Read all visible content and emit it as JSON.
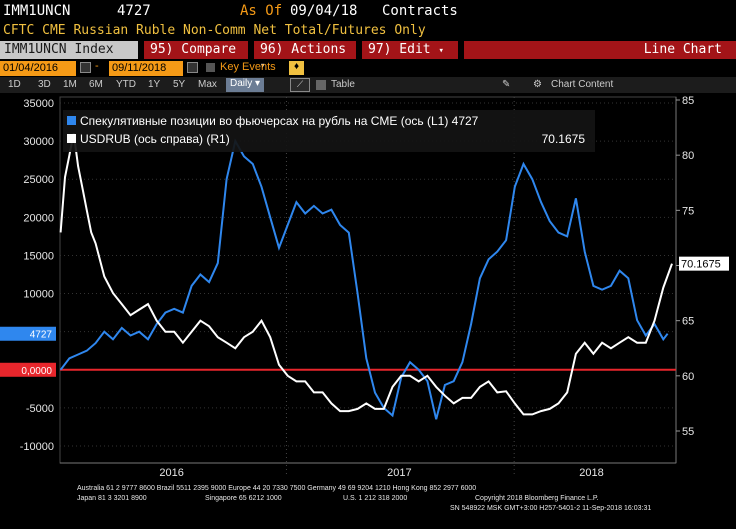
{
  "header": {
    "ticker": "IMM1UNCN",
    "value": "4727",
    "as_of_label": "As Of",
    "as_of_date": "09/04/18",
    "unit": "Contracts",
    "description": "CFTC CME Russian Ruble Non-Comm Net Total/Futures Only"
  },
  "toolbar": {
    "ticker_index": "IMM1UNCN Index",
    "compare": "95) Compare",
    "actions": "96) Actions",
    "edit": "97) Edit",
    "chart_type": "Line Chart"
  },
  "range": {
    "start": "01/04/2016",
    "end": "09/11/2018",
    "key_events": "Key Events"
  },
  "periods": {
    "buttons": [
      "1D",
      "3D",
      "1M",
      "6M",
      "YTD",
      "1Y",
      "5Y",
      "Max"
    ],
    "frequency": "Daily",
    "table": "Table",
    "chart_content": "Chart Content"
  },
  "footer": {
    "line1": "Australia 61 2 9777 8600 Brazil 5511 2395 9000 Europe 44 20 7330 7500 Germany 49 69 9204 1210 Hong Kong 852 2977 6000",
    "line2_left": "Japan 81 3 3201 8900",
    "line2_mid": "Singapore 65 6212 1000",
    "line2_mid2": "U.S. 1 212 318 2000",
    "line2_right": "Copyright 2018 Bloomberg Finance L.P.",
    "line3": "SN 548922 MSK  GMT+3:00 H257-5401-2 11-Sep-2018 16:03:31"
  },
  "colors": {
    "blue": "#2f87ee",
    "white": "#ffffff",
    "zero": "#e8262c",
    "orange": "#f59a16"
  },
  "chart_data": {
    "type": "line",
    "x_labels": [
      "2016",
      "2017",
      "2018"
    ],
    "x_range": [
      "2016-01-04",
      "2018-09-11"
    ],
    "y_left": {
      "ticks": [
        35000,
        30000,
        25000,
        20000,
        15000,
        10000,
        5000,
        0,
        -5000,
        -10000
      ],
      "tick_labels": [
        "35000",
        "30000",
        "25000",
        "20000",
        "15000",
        "10000",
        "5000",
        "0",
        "-5000",
        "-10000"
      ],
      "range": [
        -10000,
        35000
      ]
    },
    "y_right": {
      "ticks": [
        85,
        80,
        75,
        70,
        65,
        60,
        55
      ],
      "tick_labels": [
        "85",
        "80",
        "75",
        "70",
        "65",
        "60",
        "55"
      ],
      "range": [
        54,
        86
      ]
    },
    "legend": [
      {
        "name": "Спекулятивные позиции во фьючерсах на рубль на CME (ось  (L1) 4727",
        "color": "#2f87ee"
      },
      {
        "name": "USDRUB (ось справа) (R1)",
        "value": "70.1675",
        "color": "#ffffff"
      }
    ],
    "last_value_labels": {
      "left": "4727",
      "zero": "0,0000",
      "right": "70.1675"
    },
    "series": [
      {
        "name": "Спекулятивные позиции во фьючерсах на рубль на CME",
        "axis": "left",
        "x": [
          "2016-01-05",
          "2016-01-19",
          "2016-02-02",
          "2016-02-16",
          "2016-03-01",
          "2016-03-15",
          "2016-03-29",
          "2016-04-12",
          "2016-04-26",
          "2016-05-10",
          "2016-05-24",
          "2016-06-07",
          "2016-06-21",
          "2016-07-05",
          "2016-07-19",
          "2016-08-02",
          "2016-08-16",
          "2016-08-30",
          "2016-09-13",
          "2016-09-27",
          "2016-10-11",
          "2016-10-25",
          "2016-11-08",
          "2016-11-22",
          "2016-12-06",
          "2016-12-20",
          "2017-01-03",
          "2017-01-17",
          "2017-01-31",
          "2017-02-14",
          "2017-02-28",
          "2017-03-14",
          "2017-03-28",
          "2017-04-11",
          "2017-04-25",
          "2017-05-09",
          "2017-05-23",
          "2017-06-06",
          "2017-06-20",
          "2017-07-04",
          "2017-07-18",
          "2017-08-01",
          "2017-08-15",
          "2017-08-29",
          "2017-09-12",
          "2017-09-26",
          "2017-10-10",
          "2017-10-24",
          "2017-11-07",
          "2017-11-21",
          "2017-12-05",
          "2017-12-19",
          "2018-01-02",
          "2018-01-16",
          "2018-01-30",
          "2018-02-13",
          "2018-02-27",
          "2018-03-13",
          "2018-03-27",
          "2018-04-10",
          "2018-04-24",
          "2018-05-08",
          "2018-05-22",
          "2018-06-05",
          "2018-06-19",
          "2018-07-03",
          "2018-07-17",
          "2018-07-31",
          "2018-08-14",
          "2018-08-28",
          "2018-09-04"
        ],
        "values": [
          0,
          1500,
          2000,
          2500,
          3500,
          5000,
          4000,
          5500,
          4500,
          5000,
          4000,
          6000,
          7500,
          8000,
          7500,
          11000,
          12500,
          11500,
          14000,
          25000,
          30000,
          28000,
          27000,
          24000,
          20000,
          16000,
          19000,
          22000,
          20500,
          21500,
          20500,
          21000,
          19000,
          18000,
          10000,
          1500,
          -3000,
          -5000,
          -6000,
          -1000,
          1000,
          0,
          -1500,
          -6500,
          -2000,
          -1500,
          1000,
          6000,
          12000,
          14500,
          15500,
          17000,
          24000,
          27000,
          25000,
          22000,
          19500,
          18000,
          17500,
          22500,
          15500,
          11000,
          10500,
          11000,
          13000,
          12000,
          6500,
          4500,
          6000,
          4000,
          4727
        ]
      },
      {
        "name": "USDRUB",
        "axis": "right",
        "x": [
          "2016-01-05",
          "2016-01-12",
          "2016-01-19",
          "2016-01-26",
          "2016-02-02",
          "2016-02-09",
          "2016-02-16",
          "2016-02-23",
          "2016-03-01",
          "2016-03-15",
          "2016-03-29",
          "2016-04-12",
          "2016-04-26",
          "2016-05-10",
          "2016-05-24",
          "2016-06-07",
          "2016-06-21",
          "2016-07-05",
          "2016-07-19",
          "2016-08-02",
          "2016-08-16",
          "2016-08-30",
          "2016-09-13",
          "2016-09-27",
          "2016-10-11",
          "2016-10-25",
          "2016-11-08",
          "2016-11-22",
          "2016-12-06",
          "2016-12-20",
          "2017-01-03",
          "2017-01-17",
          "2017-01-31",
          "2017-02-14",
          "2017-02-28",
          "2017-03-14",
          "2017-03-28",
          "2017-04-11",
          "2017-04-25",
          "2017-05-09",
          "2017-05-23",
          "2017-06-06",
          "2017-06-20",
          "2017-07-04",
          "2017-07-18",
          "2017-08-01",
          "2017-08-15",
          "2017-08-29",
          "2017-09-12",
          "2017-09-26",
          "2017-10-10",
          "2017-10-24",
          "2017-11-07",
          "2017-11-21",
          "2017-12-05",
          "2017-12-19",
          "2018-01-02",
          "2018-01-16",
          "2018-01-30",
          "2018-02-13",
          "2018-02-27",
          "2018-03-13",
          "2018-03-27",
          "2018-04-10",
          "2018-04-24",
          "2018-05-08",
          "2018-05-22",
          "2018-06-05",
          "2018-06-19",
          "2018-07-03",
          "2018-07-17",
          "2018-07-31",
          "2018-08-14",
          "2018-08-28",
          "2018-09-11"
        ],
        "values": [
          73,
          78,
          80,
          82,
          79,
          77,
          75,
          73,
          72,
          69,
          67.5,
          66.5,
          65.5,
          66,
          66.5,
          65,
          64,
          64,
          63,
          64,
          65,
          64.5,
          63.5,
          63,
          62.5,
          63.5,
          64,
          65,
          63.5,
          61,
          60,
          59.5,
          59.5,
          58.5,
          58.5,
          57.5,
          56.8,
          56.8,
          57,
          57.5,
          57,
          57,
          59,
          60,
          60,
          59.5,
          60,
          59,
          58.2,
          57.5,
          58,
          58,
          59,
          59.5,
          58.5,
          58.6,
          57.5,
          56.5,
          56.5,
          56.8,
          57,
          57.5,
          58.5,
          62,
          63,
          62,
          63,
          62.5,
          63,
          63.5,
          63,
          63,
          65,
          68,
          70.1675
        ]
      }
    ]
  }
}
